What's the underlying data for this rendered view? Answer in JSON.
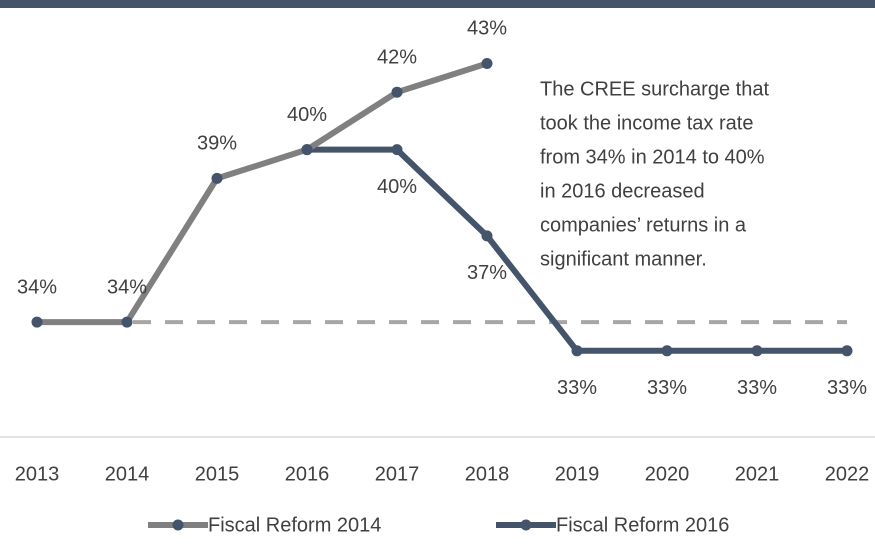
{
  "chart_data": {
    "type": "line",
    "categories": [
      "2013",
      "2014",
      "2015",
      "2016",
      "2017",
      "2018",
      "2019",
      "2020",
      "2021",
      "2022"
    ],
    "series": [
      {
        "name": "Fiscal Reform 2014",
        "color": "#808080",
        "values": [
          34,
          34,
          39,
          40,
          42,
          43,
          null,
          null,
          null,
          null
        ],
        "label_position": "above"
      },
      {
        "name": "Fiscal Reform 2016",
        "color": "#44546a",
        "values": [
          null,
          null,
          null,
          40,
          40,
          37,
          33,
          33,
          33,
          33
        ],
        "label_position": "below"
      }
    ],
    "value_labels": [
      [
        "34%",
        "34%",
        "39%",
        "40%",
        "42%",
        "43%",
        null,
        null,
        null,
        null
      ],
      [
        null,
        null,
        null,
        null,
        "40%",
        "37%",
        "33%",
        "33%",
        "33%",
        "33%"
      ]
    ],
    "marker_color": "#44546a",
    "reference_line": {
      "value": 34,
      "color": "#a6a6a6"
    },
    "ylim": [
      30,
      45
    ],
    "annotation": [
      "The CREE surcharge that",
      "took the income tax rate",
      "from 34% in 2014 to 40%",
      "in 2016 decreased",
      "companies’ returns in a",
      "significant manner."
    ],
    "legend": "bottom"
  }
}
